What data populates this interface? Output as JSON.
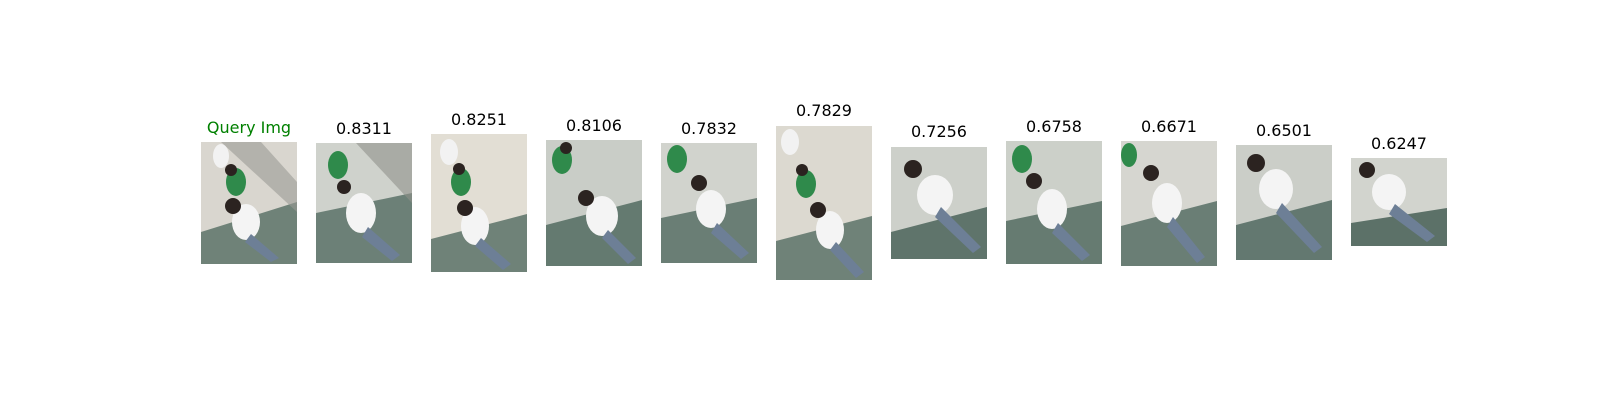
{
  "query": {
    "label": "Query Img",
    "label_color": "#008000"
  },
  "results": [
    {
      "score": "0.8311"
    },
    {
      "score": "0.8251"
    },
    {
      "score": "0.8106"
    },
    {
      "score": "0.7832"
    },
    {
      "score": "0.7829"
    },
    {
      "score": "0.7256"
    },
    {
      "score": "0.6758"
    },
    {
      "score": "0.6671"
    },
    {
      "score": "0.6501"
    },
    {
      "score": "0.6247"
    }
  ]
}
